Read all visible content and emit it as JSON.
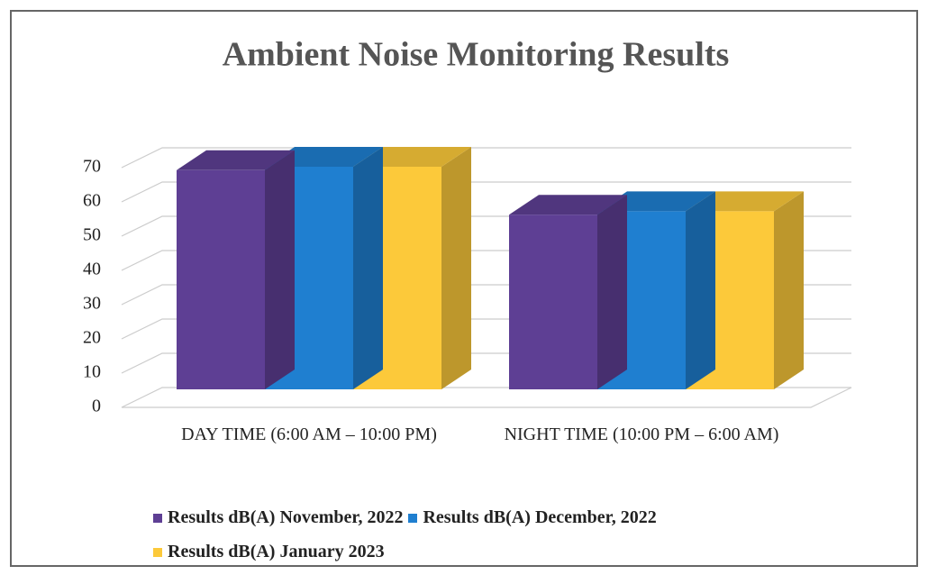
{
  "chart_data": {
    "type": "bar3d",
    "title": "Ambient Noise Monitoring Results",
    "categories": [
      "DAY TIME (6:00 AM – 10:00 PM)",
      "NIGHT TIME (10:00 PM – 6:00 AM)"
    ],
    "series": [
      {
        "name": "Results dB(A) November, 2022",
        "color": "#5e3f94",
        "values": [
          64,
          51
        ]
      },
      {
        "name": "Results dB(A) December, 2022",
        "color": "#1f7fd0",
        "values": [
          65,
          52
        ]
      },
      {
        "name": "Results dB(A) January 2023",
        "color": "#fcc93a",
        "values": [
          65,
          52
        ]
      }
    ],
    "ylim": [
      0,
      70
    ],
    "yticks": [
      0,
      10,
      20,
      30,
      40,
      50,
      60,
      70
    ],
    "grid": true,
    "legend": "bottom"
  }
}
